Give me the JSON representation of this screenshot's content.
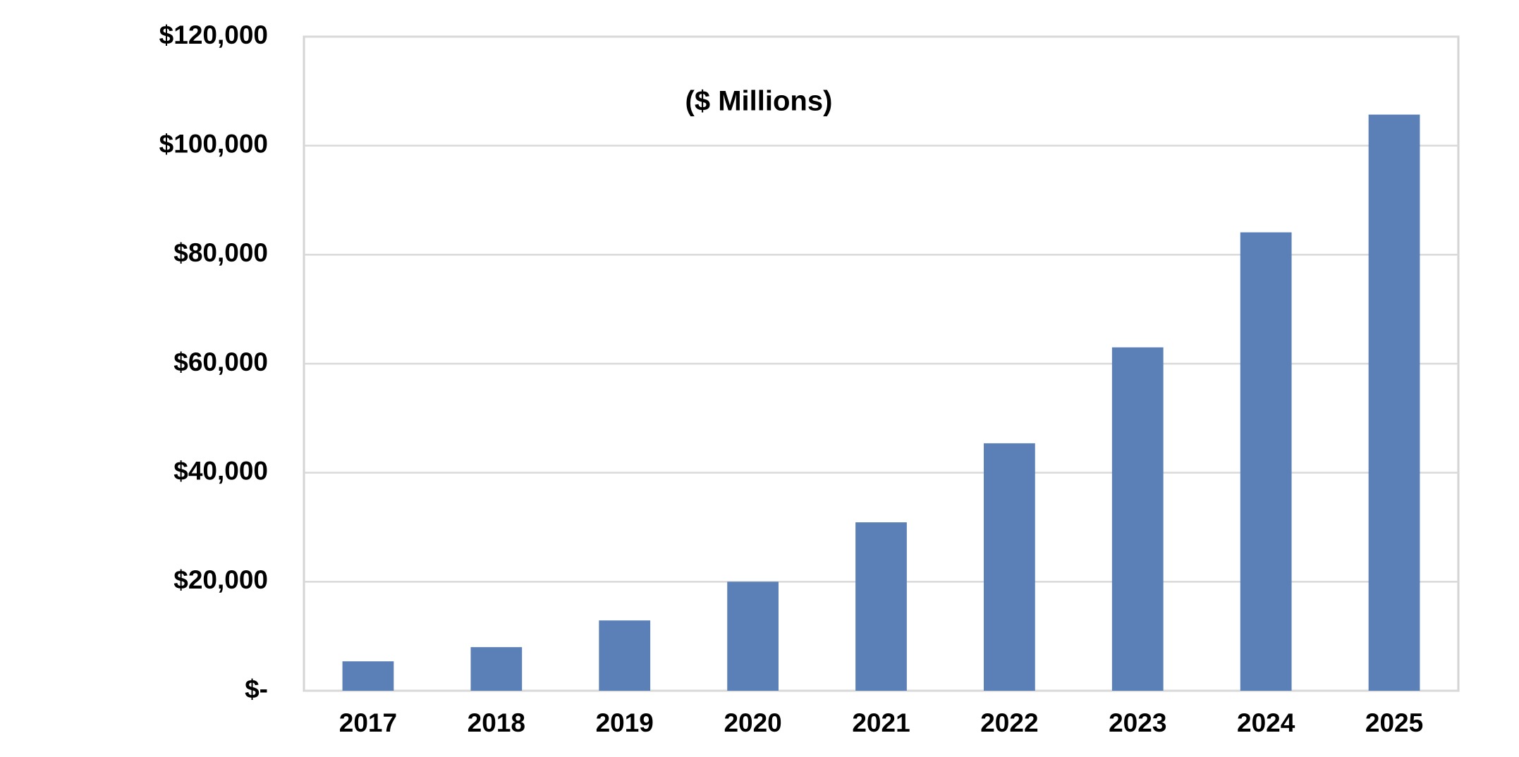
{
  "chart_data": {
    "type": "bar",
    "annotation": "($ Millions)",
    "categories": [
      "2017",
      "2018",
      "2019",
      "2020",
      "2021",
      "2022",
      "2023",
      "2024",
      "2025"
    ],
    "values": [
      5400,
      8000,
      12900,
      20000,
      30900,
      45400,
      63000,
      84100,
      105700
    ],
    "color": "#5b80b8",
    "ylim": [
      0,
      120000
    ],
    "yticks": [
      {
        "value": 0,
        "label": "$-"
      },
      {
        "value": 20000,
        "label": "$20,000"
      },
      {
        "value": 40000,
        "label": "$40,000"
      },
      {
        "value": 60000,
        "label": "$60,000"
      },
      {
        "value": 80000,
        "label": "$80,000"
      },
      {
        "value": 100000,
        "label": "$100,000"
      },
      {
        "value": 120000,
        "label": "$120,000"
      }
    ],
    "grid": true
  }
}
